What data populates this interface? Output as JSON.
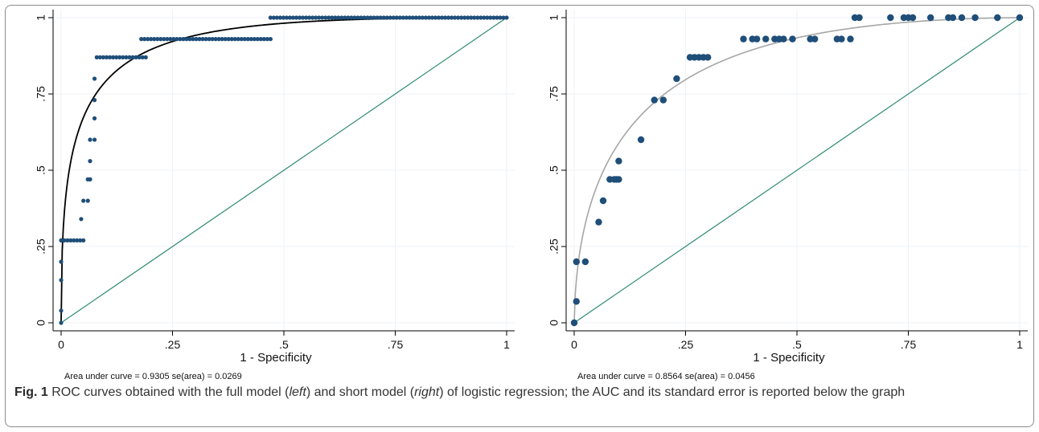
{
  "caption": {
    "label": "Fig. 1",
    "part1": " ROC curves obtained with the full model (",
    "left_word": "left",
    "part2": ") and short model (",
    "right_word": "right",
    "part3": ") of logistic regression; the AUC and its standard error is reported below the graph"
  },
  "colors": {
    "points": "#1f4e79",
    "diagonal": "#2e8b72",
    "fit_left": "#000000",
    "fit_right": "#a6a6a6",
    "grid": "#eef2f6",
    "plot_bg": "#ffffff"
  },
  "chart_data": [
    {
      "type": "scatter",
      "panel": "left",
      "xlabel": "1 - Specificity",
      "ylabel": "",
      "xlim": [
        0,
        1
      ],
      "ylim": [
        0,
        1
      ],
      "xticks": [
        "0",
        ".25",
        ".5",
        ".75",
        "1"
      ],
      "yticks": [
        "0",
        ".25",
        ".5",
        ".75",
        "1"
      ],
      "grid": true,
      "auc_text": "Area under curve = 0.9305  se(area) = 0.0269",
      "fitted_curve": {
        "type": "binormal",
        "color": "black",
        "auc": 0.9305
      },
      "reference_line": [
        [
          0,
          0
        ],
        [
          1,
          1
        ]
      ],
      "point_runs": [
        {
          "x_from": 0.0,
          "x_to": 0.0,
          "y": 0.0
        },
        {
          "x_from": 0.0,
          "x_to": 0.0,
          "y": 0.04
        },
        {
          "x_from": 0.0,
          "x_to": 0.0,
          "y": 0.14
        },
        {
          "x_from": 0.0,
          "x_to": 0.0,
          "y": 0.2
        },
        {
          "x_from": 0.0,
          "x_to": 0.05,
          "y": 0.27
        },
        {
          "x_from": 0.045,
          "x_to": 0.045,
          "y": 0.34
        },
        {
          "x_from": 0.05,
          "x_to": 0.06,
          "y": 0.4
        },
        {
          "x_from": 0.06,
          "x_to": 0.065,
          "y": 0.47
        },
        {
          "x_from": 0.065,
          "x_to": 0.065,
          "y": 0.53
        },
        {
          "x_from": 0.065,
          "x_to": 0.075,
          "y": 0.6
        },
        {
          "x_from": 0.075,
          "x_to": 0.075,
          "y": 0.67
        },
        {
          "x_from": 0.075,
          "x_to": 0.075,
          "y": 0.73
        },
        {
          "x_from": 0.075,
          "x_to": 0.075,
          "y": 0.8
        },
        {
          "x_from": 0.08,
          "x_to": 0.19,
          "y": 0.87
        },
        {
          "x_from": 0.18,
          "x_to": 0.47,
          "y": 0.93
        },
        {
          "x_from": 0.47,
          "x_to": 1.0,
          "y": 1.0
        }
      ]
    },
    {
      "type": "scatter",
      "panel": "right",
      "xlabel": "1 - Specificity",
      "ylabel": "",
      "xlim": [
        0,
        1
      ],
      "ylim": [
        0,
        1
      ],
      "xticks": [
        "0",
        ".25",
        ".5",
        ".75",
        "1"
      ],
      "yticks": [
        "0",
        ".25",
        ".5",
        ".75",
        "1"
      ],
      "grid": true,
      "auc_text": "Area under curve = 0.8564  se(area) = 0.0456",
      "fitted_curve": {
        "type": "binormal",
        "color": "gray",
        "auc": 0.8564
      },
      "reference_line": [
        [
          0,
          0
        ],
        [
          1,
          1
        ]
      ],
      "points": [
        [
          0.0,
          0.0
        ],
        [
          0.005,
          0.07
        ],
        [
          0.005,
          0.2
        ],
        [
          0.025,
          0.2
        ],
        [
          0.055,
          0.33
        ],
        [
          0.065,
          0.4
        ],
        [
          0.08,
          0.47
        ],
        [
          0.09,
          0.47
        ],
        [
          0.095,
          0.47
        ],
        [
          0.1,
          0.47
        ],
        [
          0.1,
          0.53
        ],
        [
          0.15,
          0.6
        ],
        [
          0.18,
          0.73
        ],
        [
          0.2,
          0.73
        ],
        [
          0.23,
          0.8
        ],
        [
          0.26,
          0.87
        ],
        [
          0.27,
          0.87
        ],
        [
          0.28,
          0.87
        ],
        [
          0.29,
          0.87
        ],
        [
          0.3,
          0.87
        ],
        [
          0.38,
          0.93
        ],
        [
          0.4,
          0.93
        ],
        [
          0.41,
          0.93
        ],
        [
          0.43,
          0.93
        ],
        [
          0.45,
          0.93
        ],
        [
          0.46,
          0.93
        ],
        [
          0.47,
          0.93
        ],
        [
          0.49,
          0.93
        ],
        [
          0.53,
          0.93
        ],
        [
          0.54,
          0.93
        ],
        [
          0.59,
          0.93
        ],
        [
          0.6,
          0.93
        ],
        [
          0.62,
          0.93
        ],
        [
          0.63,
          1.0
        ],
        [
          0.64,
          1.0
        ],
        [
          0.71,
          1.0
        ],
        [
          0.74,
          1.0
        ],
        [
          0.75,
          1.0
        ],
        [
          0.76,
          1.0
        ],
        [
          0.8,
          1.0
        ],
        [
          0.84,
          1.0
        ],
        [
          0.85,
          1.0
        ],
        [
          0.87,
          1.0
        ],
        [
          0.9,
          1.0
        ],
        [
          0.95,
          1.0
        ],
        [
          1.0,
          1.0
        ]
      ]
    }
  ]
}
